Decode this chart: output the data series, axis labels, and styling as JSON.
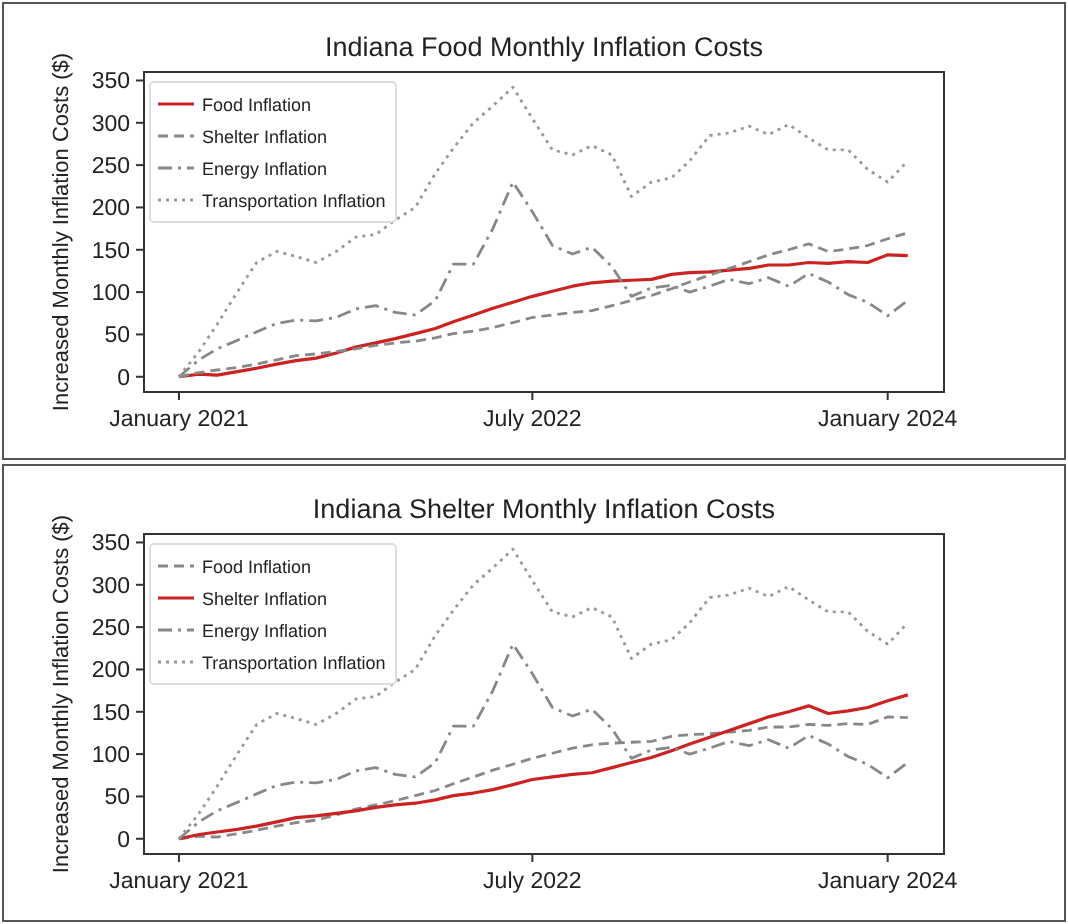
{
  "chart_data": [
    {
      "type": "line",
      "title": "Indiana Food Monthly Inflation Costs",
      "ylabel": "Increased Monthly Inflation Costs ($)",
      "x": [
        "2021-01",
        "2021-02",
        "2021-03",
        "2021-04",
        "2021-05",
        "2021-06",
        "2021-07",
        "2021-08",
        "2021-09",
        "2021-10",
        "2021-11",
        "2021-12",
        "2022-01",
        "2022-02",
        "2022-03",
        "2022-04",
        "2022-05",
        "2022-06",
        "2022-07",
        "2022-08",
        "2022-09",
        "2022-10",
        "2022-11",
        "2022-12",
        "2023-01",
        "2023-02",
        "2023-03",
        "2023-04",
        "2023-05",
        "2023-06",
        "2023-07",
        "2023-08",
        "2023-09",
        "2023-10",
        "2023-11",
        "2023-12",
        "2024-01",
        "2024-02"
      ],
      "series": [
        {
          "name": "Food Inflation",
          "color": "#cc2222",
          "line_style": "solid",
          "values": [
            0,
            3,
            2,
            6,
            10,
            15,
            19,
            22,
            28,
            35,
            40,
            45,
            51,
            57,
            65,
            73,
            81,
            88,
            95,
            101,
            107,
            111,
            113,
            114,
            115,
            121,
            123,
            124,
            126,
            128,
            132,
            132,
            135,
            134,
            136,
            135,
            144,
            143
          ]
        },
        {
          "name": "Shelter Inflation",
          "color": "#888888",
          "line_style": "dashed",
          "values": [
            0,
            5,
            8,
            11,
            15,
            20,
            25,
            27,
            30,
            33,
            37,
            40,
            42,
            46,
            51,
            54,
            58,
            64,
            70,
            73,
            76,
            78,
            84,
            90,
            96,
            104,
            112,
            120,
            128,
            136,
            144,
            150,
            157,
            148,
            151,
            155,
            163,
            170
          ]
        },
        {
          "name": "Energy Inflation",
          "color": "#888888",
          "line_style": "dashdot",
          "values": [
            0,
            20,
            33,
            43,
            53,
            63,
            67,
            66,
            70,
            80,
            84,
            76,
            73,
            90,
            133,
            133,
            175,
            230,
            195,
            155,
            145,
            153,
            130,
            95,
            105,
            108,
            100,
            107,
            115,
            110,
            117,
            107,
            122,
            112,
            97,
            88,
            72,
            90
          ]
        },
        {
          "name": "Transportation Inflation",
          "color": "#999999",
          "line_style": "dotted",
          "values": [
            0,
            30,
            62,
            100,
            135,
            148,
            142,
            135,
            148,
            165,
            168,
            185,
            200,
            240,
            270,
            300,
            320,
            342,
            305,
            268,
            262,
            273,
            262,
            213,
            230,
            235,
            255,
            285,
            288,
            296,
            286,
            298,
            282,
            268,
            268,
            245,
            230,
            255
          ]
        }
      ],
      "xlim": [
        "2020-11-08",
        "2024-03-28"
      ],
      "xticks": [
        {
          "value": "2021-01",
          "label": "January 2021"
        },
        {
          "value": "2022-07",
          "label": "July 2022"
        },
        {
          "value": "2024-01",
          "label": "January 2024"
        }
      ],
      "ylim": [
        -18,
        360
      ],
      "yticks": [
        0,
        50,
        100,
        150,
        200,
        250,
        300,
        350
      ],
      "legend": "top left",
      "grid": false
    },
    {
      "type": "line",
      "title": "Indiana Shelter Monthly Inflation Costs",
      "ylabel": "Increased Monthly Inflation Costs ($)",
      "x": [
        "2021-01",
        "2021-02",
        "2021-03",
        "2021-04",
        "2021-05",
        "2021-06",
        "2021-07",
        "2021-08",
        "2021-09",
        "2021-10",
        "2021-11",
        "2021-12",
        "2022-01",
        "2022-02",
        "2022-03",
        "2022-04",
        "2022-05",
        "2022-06",
        "2022-07",
        "2022-08",
        "2022-09",
        "2022-10",
        "2022-11",
        "2022-12",
        "2023-01",
        "2023-02",
        "2023-03",
        "2023-04",
        "2023-05",
        "2023-06",
        "2023-07",
        "2023-08",
        "2023-09",
        "2023-10",
        "2023-11",
        "2023-12",
        "2024-01",
        "2024-02"
      ],
      "series": [
        {
          "name": "Food Inflation",
          "color": "#888888",
          "line_style": "dashed",
          "values": [
            0,
            3,
            2,
            6,
            10,
            15,
            19,
            22,
            28,
            35,
            40,
            45,
            51,
            57,
            65,
            73,
            81,
            88,
            95,
            101,
            107,
            111,
            113,
            114,
            115,
            121,
            123,
            124,
            126,
            128,
            132,
            132,
            135,
            134,
            136,
            135,
            144,
            143
          ]
        },
        {
          "name": "Shelter Inflation",
          "color": "#cc2222",
          "line_style": "solid",
          "values": [
            0,
            5,
            8,
            11,
            15,
            20,
            25,
            27,
            30,
            33,
            37,
            40,
            42,
            46,
            51,
            54,
            58,
            64,
            70,
            73,
            76,
            78,
            84,
            90,
            96,
            104,
            112,
            120,
            128,
            136,
            144,
            150,
            157,
            148,
            151,
            155,
            163,
            170
          ]
        },
        {
          "name": "Energy Inflation",
          "color": "#888888",
          "line_style": "dashdot",
          "values": [
            0,
            20,
            33,
            43,
            53,
            63,
            67,
            66,
            70,
            80,
            84,
            76,
            73,
            90,
            133,
            133,
            175,
            230,
            195,
            155,
            145,
            153,
            130,
            95,
            105,
            108,
            100,
            107,
            115,
            110,
            117,
            107,
            122,
            112,
            97,
            88,
            72,
            90
          ]
        },
        {
          "name": "Transportation Inflation",
          "color": "#999999",
          "line_style": "dotted",
          "values": [
            0,
            30,
            62,
            100,
            135,
            148,
            142,
            135,
            148,
            165,
            168,
            185,
            200,
            240,
            270,
            300,
            320,
            342,
            305,
            268,
            262,
            273,
            262,
            213,
            230,
            235,
            255,
            285,
            288,
            296,
            286,
            298,
            282,
            268,
            268,
            245,
            230,
            255
          ]
        }
      ],
      "xlim": [
        "2020-11-08",
        "2024-03-28"
      ],
      "xticks": [
        {
          "value": "2021-01",
          "label": "January 2021"
        },
        {
          "value": "2022-07",
          "label": "July 2022"
        },
        {
          "value": "2024-01",
          "label": "January 2024"
        }
      ],
      "ylim": [
        -18,
        360
      ],
      "yticks": [
        0,
        50,
        100,
        150,
        200,
        250,
        300,
        350
      ],
      "legend": "top left",
      "grid": false
    }
  ]
}
